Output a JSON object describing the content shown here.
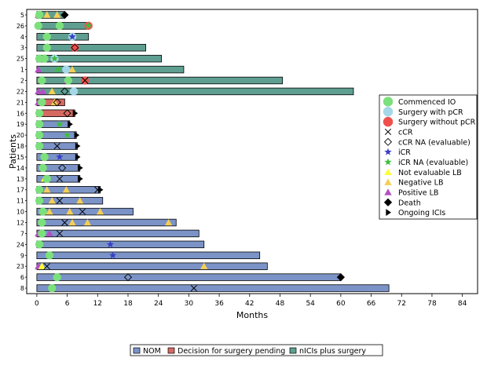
{
  "chart_data": {
    "type": "bar",
    "orientation": "horizontal",
    "title": "",
    "xlabel": "Months",
    "ylabel": "Patients",
    "xlim": [
      -2,
      87
    ],
    "xticks": [
      0,
      6,
      12,
      18,
      24,
      30,
      36,
      42,
      48,
      54,
      60,
      66,
      72,
      78,
      84
    ],
    "colors": {
      "NOM": "#7b93c7",
      "Decision for surgery pending": "#d66a62",
      "nICIs plus surgery": "#5f9f92",
      "commenced": "#7ce07c",
      "pcr": "#a6d7e8",
      "no_pcr": "#f0504c",
      "icr": "#3a3fc6",
      "icr_na": "#3cbf3c",
      "not_eval": "#ffff33",
      "neg_lb": "#f4cf55",
      "pos_lb": "#b34fc2"
    },
    "bar_legend": [
      {
        "label": "NOM",
        "key": "NOM"
      },
      {
        "label": "Decision for surgery pending",
        "key": "Decision for surgery pending"
      },
      {
        "label": "nICIs plus surgery",
        "key": "nICIs plus surgery"
      }
    ],
    "marker_legend": [
      {
        "label": "Commenced IO",
        "symbol": "circle",
        "color": "#7ce07c"
      },
      {
        "label": "Surgery with pCR",
        "symbol": "circle",
        "color": "#a6d7e8"
      },
      {
        "label": "Surgery without pCR",
        "symbol": "circle",
        "color": "#f0504c"
      },
      {
        "label": "cCR",
        "symbol": "x",
        "color": "#000000"
      },
      {
        "label": "cCR NA (evaluable)",
        "symbol": "diamond-open",
        "color": "#000000"
      },
      {
        "label": "iCR",
        "symbol": "star",
        "color": "#3a3fc6"
      },
      {
        "label": "iCR NA (evaluable)",
        "symbol": "star",
        "color": "#3cbf3c"
      },
      {
        "label": "Not evaluable LB",
        "symbol": "triangle",
        "color": "#ffff33"
      },
      {
        "label": "Negative LB",
        "symbol": "triangle",
        "color": "#f4cf55"
      },
      {
        "label": "Positive LB",
        "symbol": "triangle",
        "color": "#b34fc2"
      },
      {
        "label": "Death",
        "symbol": "diamond",
        "color": "#000000"
      },
      {
        "label": "Ongoing ICIs",
        "symbol": "arrow",
        "color": "#000000"
      }
    ],
    "patients": [
      {
        "id": "5",
        "group": "nICIs plus surgery",
        "end": 5.5,
        "markers": [
          [
            "pos_lb",
            0.3
          ],
          [
            "commenced",
            0.5
          ],
          [
            "neg_lb",
            2
          ],
          [
            "neg_lb",
            4
          ],
          [
            "death",
            5.5
          ]
        ]
      },
      {
        "id": "26",
        "group": "nICIs plus surgery",
        "end": 10.2,
        "markers": [
          [
            "commenced",
            0.3
          ],
          [
            "commenced",
            4.5
          ],
          [
            "no_pcr",
            10.2
          ],
          [
            "icr_na",
            10.2
          ]
        ]
      },
      {
        "id": "4",
        "group": "nICIs plus surgery",
        "end": 10.2,
        "markers": [
          [
            "commenced",
            2
          ],
          [
            "pcr",
            7
          ],
          [
            "icr",
            7
          ]
        ]
      },
      {
        "id": "3",
        "group": "nICIs plus surgery",
        "end": 21.5,
        "markers": [
          [
            "commenced",
            2
          ],
          [
            "no_pcr",
            7.5
          ],
          [
            "diamond_open",
            7.5
          ]
        ]
      },
      {
        "id": "25",
        "group": "nICIs plus surgery",
        "end": 24.6,
        "markers": [
          [
            "commenced",
            0.5
          ],
          [
            "commenced",
            1.5
          ],
          [
            "pcr",
            3.5
          ],
          [
            "icr_na",
            3.5
          ]
        ]
      },
      {
        "id": "1",
        "group": "nICIs plus surgery",
        "end": 29.0,
        "markers": [
          [
            "pos_lb",
            0.3
          ],
          [
            "icr_na",
            4.2
          ],
          [
            "pcr",
            5.8
          ],
          [
            "neg_lb",
            7
          ]
        ]
      },
      {
        "id": "2",
        "group": "nICIs plus surgery",
        "end": 48.5,
        "markers": [
          [
            "commenced",
            1
          ],
          [
            "pos_lb",
            6
          ],
          [
            "commenced",
            6.2
          ],
          [
            "no_pcr",
            9.5
          ],
          [
            "x",
            9.5
          ]
        ]
      },
      {
        "id": "22",
        "group": "nICIs plus surgery",
        "end": 62.5,
        "markers": [
          [
            "pos_lb",
            0.3
          ],
          [
            "pos_lb",
            1.2
          ],
          [
            "neg_lb",
            3
          ],
          [
            "diamond_open",
            5.5
          ],
          [
            "pcr",
            7.3
          ]
        ]
      },
      {
        "id": "21",
        "group": "Decision for surgery pending",
        "end": 5.5,
        "markers": [
          [
            "pos_lb",
            0.3
          ],
          [
            "commenced",
            1
          ],
          [
            "neg_lb",
            3.5
          ],
          [
            "diamond_open",
            4
          ]
        ]
      },
      {
        "id": "16",
        "group": "Decision for surgery pending",
        "end": 7.5,
        "markers": [
          [
            "commenced",
            0.5
          ],
          [
            "diamond_open",
            6
          ],
          [
            "arrow",
            7.5
          ]
        ]
      },
      {
        "id": "19",
        "group": "NOM",
        "end": 6.5,
        "markers": [
          [
            "commenced",
            0.5
          ],
          [
            "icr_na",
            4.5
          ],
          [
            "arrow",
            6.5
          ]
        ]
      },
      {
        "id": "20",
        "group": "NOM",
        "end": 7.8,
        "markers": [
          [
            "commenced",
            0.5
          ],
          [
            "icr_na",
            6
          ],
          [
            "arrow",
            7.8
          ]
        ]
      },
      {
        "id": "18",
        "group": "NOM",
        "end": 8.0,
        "markers": [
          [
            "commenced",
            0.5
          ],
          [
            "x",
            4
          ],
          [
            "arrow",
            8
          ]
        ]
      },
      {
        "id": "15",
        "group": "NOM",
        "end": 8.0,
        "markers": [
          [
            "commenced",
            1.5
          ],
          [
            "icr",
            4.5
          ],
          [
            "arrow",
            8
          ]
        ]
      },
      {
        "id": "14",
        "group": "NOM",
        "end": 8.5,
        "markers": [
          [
            "commenced",
            1.2
          ],
          [
            "diamond_open",
            5
          ],
          [
            "arrow",
            8.5
          ]
        ]
      },
      {
        "id": "13",
        "group": "NOM",
        "end": 8.5,
        "markers": [
          [
            "not_eval",
            1.5
          ],
          [
            "commenced",
            2
          ],
          [
            "x",
            4.5
          ],
          [
            "arrow",
            8.5
          ]
        ]
      },
      {
        "id": "17",
        "group": "NOM",
        "end": 12.5,
        "markers": [
          [
            "commenced",
            0.5
          ],
          [
            "neg_lb",
            2
          ],
          [
            "neg_lb",
            5.8
          ],
          [
            "x",
            12
          ],
          [
            "arrow",
            12.5
          ]
        ]
      },
      {
        "id": "11",
        "group": "NOM",
        "end": 13.0,
        "markers": [
          [
            "commenced",
            0.5
          ],
          [
            "neg_lb",
            3
          ],
          [
            "x",
            4.5
          ],
          [
            "neg_lb",
            8.5
          ]
        ]
      },
      {
        "id": "10",
        "group": "NOM",
        "end": 19.0,
        "markers": [
          [
            "commenced",
            1.2
          ],
          [
            "neg_lb",
            2.5
          ],
          [
            "neg_lb",
            6.5
          ],
          [
            "x",
            9
          ],
          [
            "neg_lb",
            12.5
          ]
        ]
      },
      {
        "id": "12",
        "group": "NOM",
        "end": 27.5,
        "markers": [
          [
            "commenced",
            1
          ],
          [
            "x",
            5.5
          ],
          [
            "neg_lb",
            7
          ],
          [
            "neg_lb",
            10
          ],
          [
            "neg_lb",
            26
          ]
        ]
      },
      {
        "id": "7",
        "group": "NOM",
        "end": 32.0,
        "markers": [
          [
            "pos_lb",
            0.3
          ],
          [
            "commenced",
            1
          ],
          [
            "pos_lb",
            2.5
          ],
          [
            "x",
            4.5
          ]
        ]
      },
      {
        "id": "24",
        "group": "NOM",
        "end": 33.0,
        "markers": [
          [
            "commenced",
            0.5
          ],
          [
            "icr",
            14.5
          ]
        ]
      },
      {
        "id": "9",
        "group": "NOM",
        "end": 44.0,
        "markers": [
          [
            "commenced",
            2.5
          ],
          [
            "icr",
            15
          ]
        ]
      },
      {
        "id": "23",
        "group": "NOM",
        "end": 45.5,
        "markers": [
          [
            "pos_lb",
            0.3
          ],
          [
            "not_eval",
            1
          ],
          [
            "x",
            2
          ],
          [
            "neg_lb",
            33
          ]
        ]
      },
      {
        "id": "6",
        "group": "NOM",
        "end": 60.0,
        "markers": [
          [
            "commenced",
            4
          ],
          [
            "diamond_open",
            18
          ],
          [
            "death",
            60
          ]
        ]
      },
      {
        "id": "8",
        "group": "NOM",
        "end": 69.5,
        "markers": [
          [
            "commenced",
            3
          ],
          [
            "x",
            31
          ]
        ]
      }
    ]
  }
}
